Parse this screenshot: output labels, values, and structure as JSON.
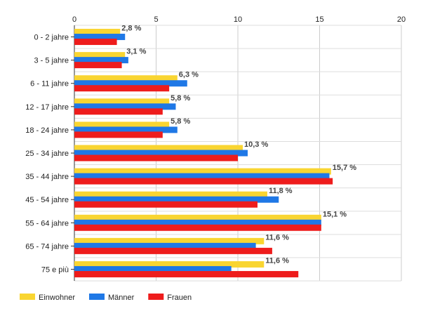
{
  "chart_data": {
    "type": "bar",
    "orientation": "horizontal",
    "categories": [
      "0 - 2 jahre",
      "3 - 5 jahre",
      "6 - 11 jahre",
      "12 - 17 jahre",
      "18 - 24 jahre",
      "25 - 34 jahre",
      "35 - 44 jahre",
      "45 - 54 jahre",
      "55 - 64 jahre",
      "65 - 74 jahre",
      "75 e più"
    ],
    "series": [
      {
        "name": "Einwohner",
        "color": "#f9d531",
        "values": [
          2.8,
          3.1,
          6.3,
          5.8,
          5.8,
          10.3,
          15.7,
          11.8,
          15.1,
          11.6,
          11.6
        ]
      },
      {
        "name": "Männer",
        "color": "#1f78e6",
        "values": [
          3.1,
          3.3,
          6.9,
          6.2,
          6.3,
          10.6,
          15.6,
          12.5,
          15.1,
          11.1,
          9.6
        ]
      },
      {
        "name": "Frauen",
        "color": "#ee1c1c",
        "values": [
          2.6,
          2.9,
          5.8,
          5.4,
          5.4,
          10.0,
          15.8,
          11.2,
          15.1,
          12.1,
          13.7
        ]
      }
    ],
    "data_labels": [
      "2,8 %",
      "3,1 %",
      "6,3 %",
      "5,8 %",
      "5,8 %",
      "10,3 %",
      "15,7 %",
      "11,8 %",
      "15,1 %",
      "11,6 %",
      "11,6 %"
    ],
    "xlim": [
      0,
      20
    ],
    "x_ticks": [
      0,
      5,
      10,
      15,
      20
    ],
    "x_tick_labels": [
      "0",
      "5",
      "10",
      "15",
      "20"
    ],
    "x_axis_position": "top",
    "grid": true,
    "legend_position": "bottom-left",
    "title": "",
    "xlabel": "",
    "ylabel": ""
  }
}
